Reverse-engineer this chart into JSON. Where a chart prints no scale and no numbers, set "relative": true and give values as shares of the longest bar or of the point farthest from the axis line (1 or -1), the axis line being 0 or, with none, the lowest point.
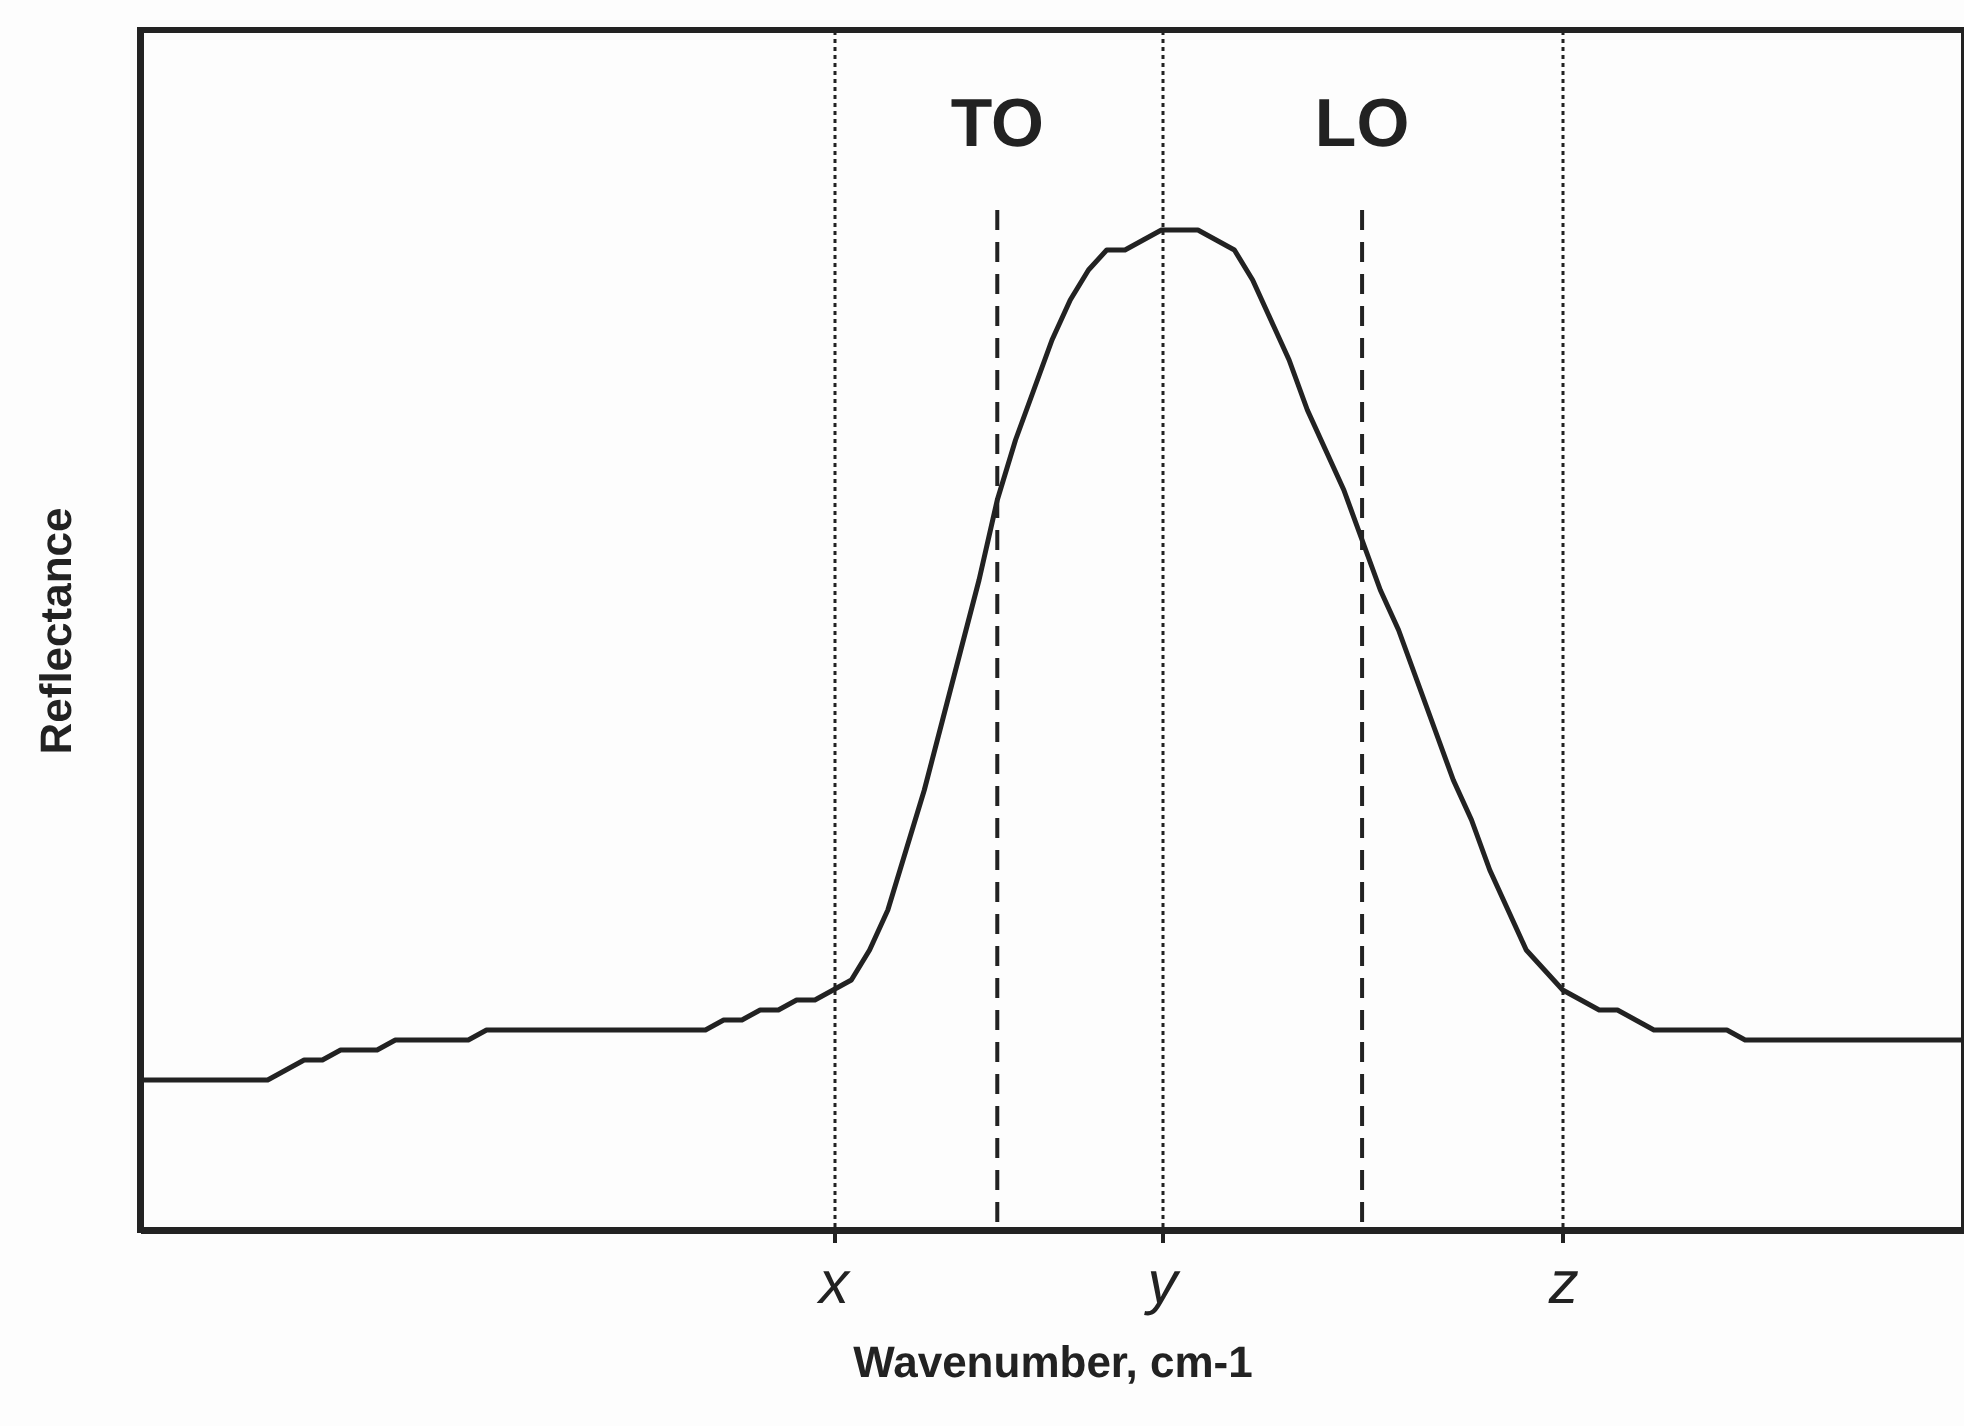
{
  "chart_data": {
    "type": "line",
    "relative": true,
    "xlabel": "Wavenumber, cm-1",
    "ylabel": "Reflectance",
    "categories": [
      null,
      null,
      null,
      null,
      null,
      null,
      null,
      null,
      null,
      null,
      null,
      null,
      null,
      null,
      null,
      null,
      null,
      null,
      null,
      null,
      null,
      null,
      null,
      null,
      null,
      null,
      null,
      null,
      null,
      null,
      null,
      null,
      null,
      null,
      null,
      null,
      null,
      null,
      "x",
      null,
      null,
      null,
      null,
      null,
      null,
      null,
      null,
      null,
      null,
      null,
      null,
      null,
      null,
      null,
      null,
      null,
      "y",
      null,
      null,
      null,
      null,
      null,
      null,
      null,
      null,
      null,
      null,
      null,
      null,
      null,
      null,
      null,
      null,
      null,
      null,
      null,
      null,
      null,
      "z",
      null,
      null,
      null,
      null,
      null,
      null,
      null,
      null,
      null,
      null,
      null,
      null,
      null,
      null,
      null,
      null,
      null,
      null,
      null,
      null,
      null,
      null
    ],
    "annotations": [
      "TO",
      "LO"
    ],
    "grid": "x",
    "marker": "none",
    "line_style": "solid",
    "series": [
      {
        "color": "#222222",
        "values": [
          0.15,
          0.15,
          0.15,
          0.15,
          0.15,
          0.15,
          0.15,
          0.15,
          0.16,
          0.17,
          0.17,
          0.18,
          0.18,
          0.18,
          0.19,
          0.19,
          0.19,
          0.19,
          0.19,
          0.2,
          0.2,
          0.2,
          0.2,
          0.2,
          0.2,
          0.2,
          0.2,
          0.2,
          0.2,
          0.2,
          0.2,
          0.2,
          0.21,
          0.21,
          0.22,
          0.22,
          0.23,
          0.23,
          0.24,
          0.25,
          0.28,
          0.32,
          0.38,
          0.44,
          0.51,
          0.58,
          0.65,
          0.73,
          0.79,
          0.84,
          0.89,
          0.93,
          0.96,
          0.98,
          0.98,
          0.99,
          1.0,
          1.0,
          1.0,
          0.99,
          0.98,
          0.95,
          0.91,
          0.87,
          0.82,
          0.78,
          0.74,
          0.69,
          0.64,
          0.6,
          0.55,
          0.5,
          0.45,
          0.41,
          0.36,
          0.32,
          0.28,
          0.26,
          0.24,
          0.23,
          0.22,
          0.22,
          0.21,
          0.2,
          0.2,
          0.2,
          0.2,
          0.2,
          0.19,
          0.19,
          0.19,
          0.19,
          0.19,
          0.19,
          0.19,
          0.19,
          0.19,
          0.19,
          0.19,
          0.19,
          0.19
        ]
      }
    ]
  }
}
